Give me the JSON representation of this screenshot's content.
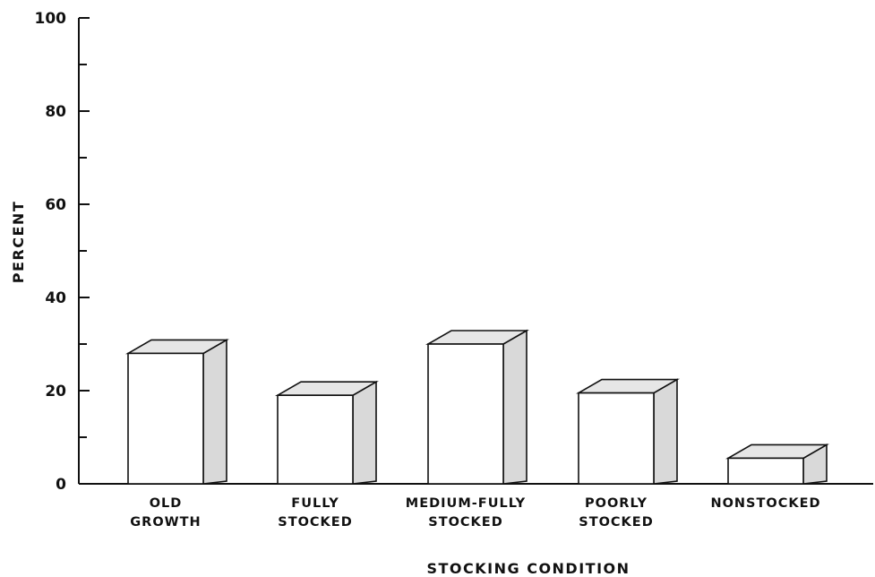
{
  "chart_data": {
    "type": "bar",
    "style": "3d",
    "title": "",
    "xlabel": "STOCKING CONDITION",
    "ylabel": "PERCENT",
    "ylim": [
      0,
      100
    ],
    "yticks": [
      0,
      20,
      40,
      60,
      80,
      100
    ],
    "y_minor_tick_step": 10,
    "grid": false,
    "legend": "none",
    "categories": [
      [
        "OLD",
        "GROWTH"
      ],
      [
        "FULLY",
        "STOCKED"
      ],
      [
        "MEDIUM-FULLY",
        "STOCKED"
      ],
      [
        "POORLY",
        "STOCKED"
      ],
      [
        "NONSTOCKED"
      ]
    ],
    "values": [
      28,
      19,
      30,
      19.5,
      5.5
    ],
    "colors": {
      "front": "#ffffff",
      "top": "#e6e6e6",
      "side": "#d9d9d9",
      "stroke": "#111111"
    }
  }
}
